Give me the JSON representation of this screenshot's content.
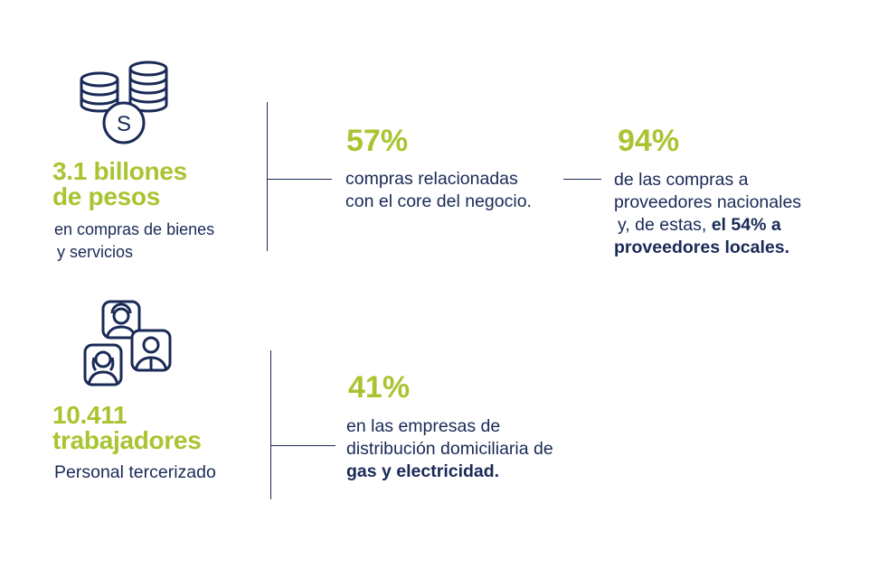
{
  "colors": {
    "accent": "#a9c431",
    "text": "#1a2a57"
  },
  "section1": {
    "icon": "coins-stack-icon",
    "headline": [
      "3.1 billones",
      "de pesos"
    ],
    "caption": [
      "en compras de bienes",
      "y servicios"
    ],
    "stat1": {
      "value": "57%",
      "text": [
        "compras relacionadas",
        "con el  core del negocio."
      ]
    },
    "stat2": {
      "value": "94%",
      "text": [
        "de las compras a",
        "proveedores nacionales"
      ],
      "text3_prefix": "y, de estas, ",
      "text3_bold": "el 54% a",
      "text4_bold": "proveedores locales."
    }
  },
  "section2": {
    "icon": "workers-group-icon",
    "headline": [
      "10.411",
      "trabajadores"
    ],
    "caption": "Personal tercerizado",
    "stat1": {
      "value": "41%",
      "text": [
        "en las empresas de",
        "distribución domiciliaria de"
      ],
      "text_bold": "gas y electricidad."
    }
  }
}
